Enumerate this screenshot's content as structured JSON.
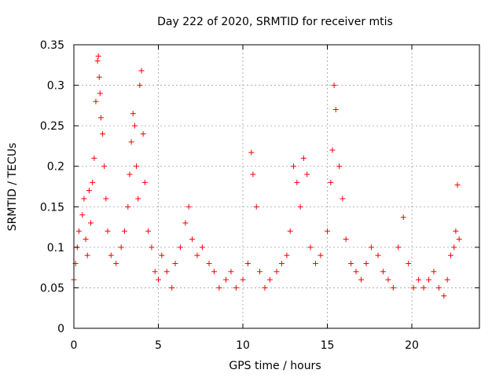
{
  "chart_data": {
    "type": "scatter",
    "title": "Day 222 of 2020, SRMTID for receiver mtis",
    "xlabel": "GPS time / hours",
    "ylabel": "SRMTID / TECUs",
    "xlim": [
      0,
      24
    ],
    "ylim": [
      0,
      0.35
    ],
    "xticks": [
      0,
      5,
      10,
      15,
      20
    ],
    "xtick_labels": [
      "0",
      "5",
      "10",
      "15",
      "20"
    ],
    "yticks": [
      0,
      0.05,
      0.1,
      0.15,
      0.2,
      0.25,
      0.3,
      0.35
    ],
    "ytick_labels": [
      "0",
      "0.05",
      "0.1",
      "0.15",
      "0.2",
      "0.25",
      "0.3",
      "0.35"
    ],
    "grid": true,
    "marker": "+",
    "color": "#ff0000",
    "series": [
      {
        "name": "SRMTID",
        "x": [
          0.0,
          0.1,
          0.2,
          0.3,
          0.5,
          0.6,
          0.7,
          0.8,
          0.9,
          1.0,
          1.1,
          1.2,
          1.3,
          1.4,
          1.45,
          1.5,
          1.55,
          1.6,
          1.7,
          1.8,
          1.9,
          2.0,
          2.2,
          2.5,
          2.8,
          3.0,
          3.2,
          3.3,
          3.4,
          3.5,
          3.6,
          3.7,
          3.8,
          3.9,
          4.0,
          4.1,
          4.2,
          4.4,
          4.6,
          4.8,
          5.0,
          5.2,
          5.5,
          5.8,
          6.0,
          6.3,
          6.6,
          6.8,
          7.0,
          7.3,
          7.6,
          8.0,
          8.3,
          8.6,
          9.0,
          9.3,
          9.6,
          10.0,
          10.3,
          10.5,
          10.6,
          10.8,
          11.0,
          11.3,
          11.6,
          12.0,
          12.3,
          12.6,
          12.8,
          13.0,
          13.2,
          13.4,
          13.6,
          13.8,
          14.0,
          14.3,
          14.6,
          15.0,
          15.2,
          15.3,
          15.4,
          15.5,
          15.7,
          15.9,
          16.1,
          16.4,
          16.7,
          17.0,
          17.3,
          17.6,
          18.0,
          18.3,
          18.6,
          18.9,
          19.2,
          19.5,
          19.8,
          20.1,
          20.4,
          20.7,
          21.0,
          21.3,
          21.6,
          21.9,
          22.1,
          22.3,
          22.5,
          22.6,
          22.7,
          22.8
        ],
        "values": [
          0.06,
          0.08,
          0.1,
          0.12,
          0.14,
          0.16,
          0.11,
          0.09,
          0.17,
          0.13,
          0.18,
          0.21,
          0.28,
          0.33,
          0.336,
          0.31,
          0.29,
          0.26,
          0.24,
          0.2,
          0.16,
          0.12,
          0.09,
          0.08,
          0.1,
          0.12,
          0.15,
          0.19,
          0.23,
          0.265,
          0.25,
          0.2,
          0.16,
          0.3,
          0.318,
          0.24,
          0.18,
          0.12,
          0.1,
          0.07,
          0.06,
          0.09,
          0.07,
          0.05,
          0.08,
          0.1,
          0.13,
          0.15,
          0.11,
          0.09,
          0.1,
          0.08,
          0.07,
          0.05,
          0.06,
          0.07,
          0.05,
          0.06,
          0.08,
          0.217,
          0.19,
          0.15,
          0.07,
          0.05,
          0.06,
          0.07,
          0.08,
          0.09,
          0.12,
          0.2,
          0.18,
          0.15,
          0.21,
          0.19,
          0.1,
          0.08,
          0.09,
          0.12,
          0.18,
          0.22,
          0.3,
          0.27,
          0.2,
          0.16,
          0.11,
          0.08,
          0.07,
          0.06,
          0.08,
          0.1,
          0.09,
          0.07,
          0.06,
          0.05,
          0.1,
          0.137,
          0.08,
          0.05,
          0.06,
          0.05,
          0.06,
          0.07,
          0.05,
          0.04,
          0.06,
          0.09,
          0.1,
          0.12,
          0.177,
          0.11
        ]
      }
    ]
  }
}
